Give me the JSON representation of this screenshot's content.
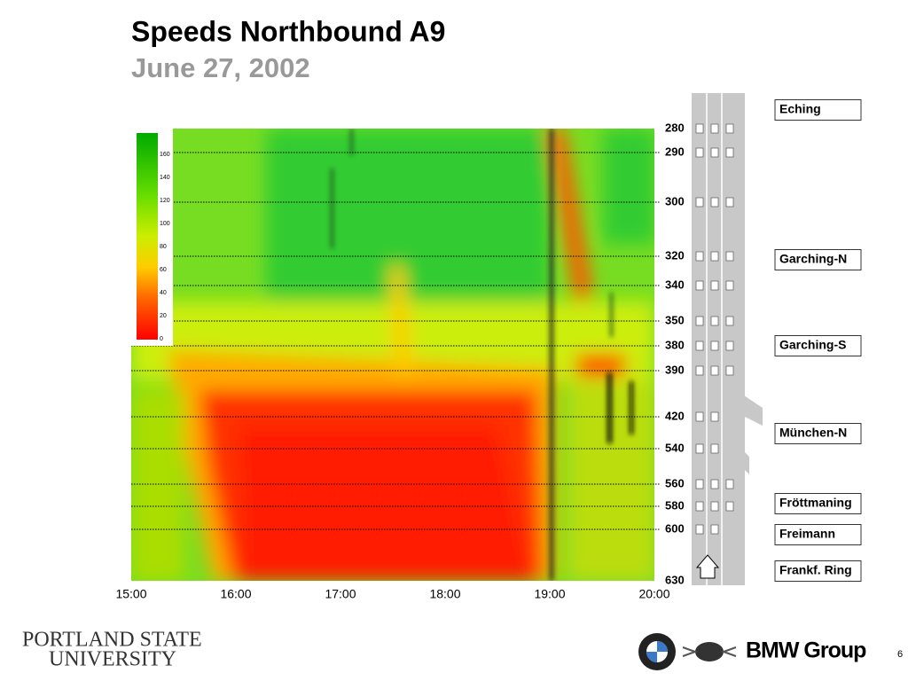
{
  "header": {
    "title": "Speeds Northbound A9",
    "subtitle": "June 27, 2002"
  },
  "heatmap": {
    "time_labels": [
      "15:00",
      "16:00",
      "17:00",
      "18:00",
      "19:00",
      "20:00"
    ],
    "positions": [
      "280",
      "290",
      "300",
      "320",
      "340",
      "350",
      "380",
      "390",
      "420",
      "540",
      "560",
      "580",
      "600",
      "630"
    ],
    "colorbar_ticks": [
      "160",
      "140",
      "120",
      "100",
      "80",
      "60",
      "40",
      "20",
      "0"
    ]
  },
  "map": {
    "exits": [
      "Eching",
      "Garching-N",
      "Garching-S",
      "München-N",
      "Fröttmaning",
      "Freimann",
      "Frankf. Ring"
    ]
  },
  "footer": {
    "university": [
      "PORTLAND STATE",
      "UNIVERSITY"
    ],
    "brand": "BMW Group",
    "page": "6"
  }
}
